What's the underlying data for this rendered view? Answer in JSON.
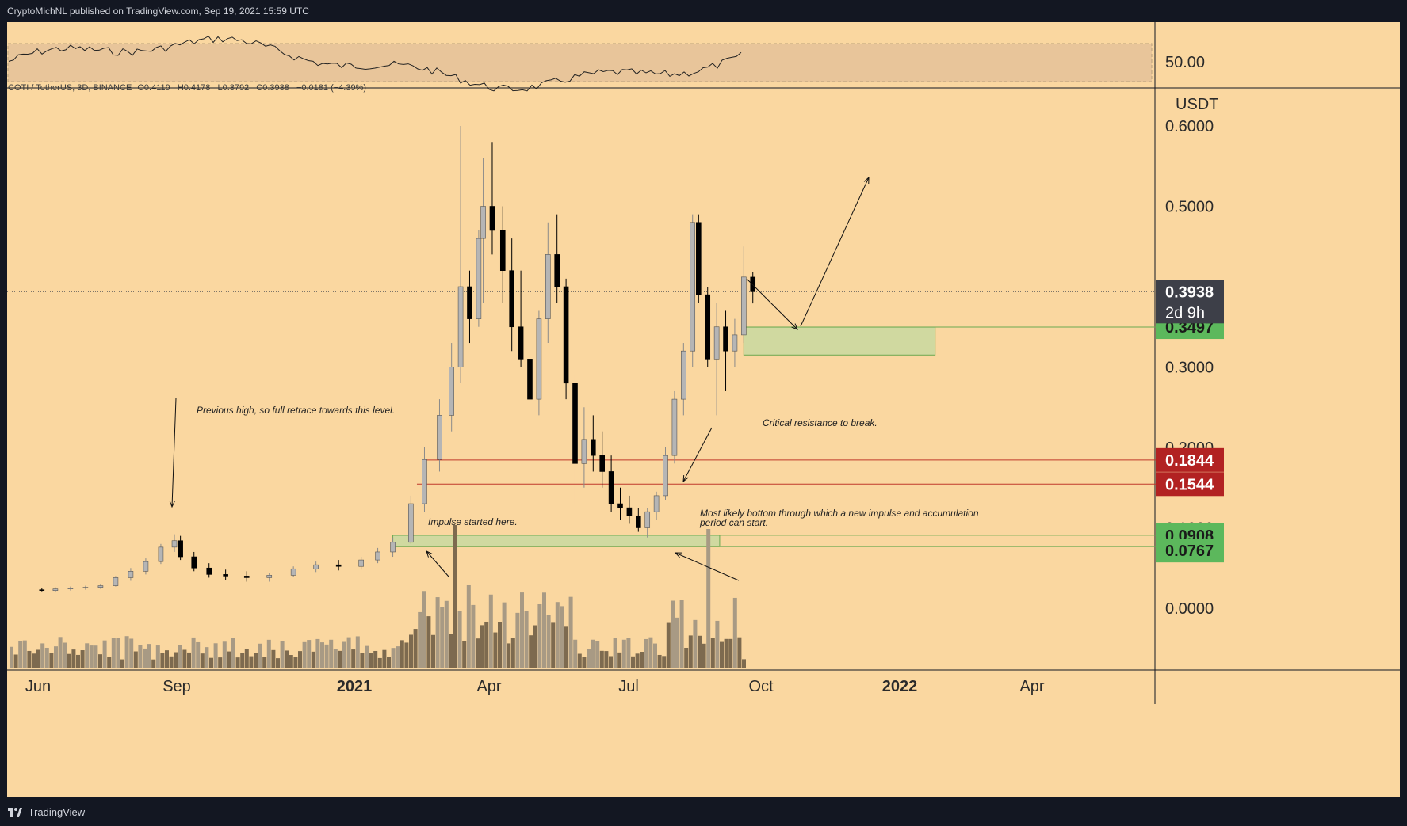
{
  "header": {
    "published_by": "CryptoMichNL published on TradingView.com, Sep 19, 2021 15:59 UTC"
  },
  "footer": {
    "brand": "TradingView"
  },
  "symbol": {
    "pair": "COTI / TetherUS, 3D, BINANCE",
    "open": "O0.4119",
    "high": "H0.4178",
    "low": "L0.3792",
    "close": "C0.3938",
    "change": "−0.0181 (−4.39%)"
  },
  "price_axis": {
    "currency": "USDT",
    "ticks": [
      "0.6000",
      "0.5000",
      "0.3000",
      "0.2000",
      "0.1000",
      "0.0000"
    ],
    "current_price": "0.3938",
    "countdown": "2d 9h"
  },
  "price_labels": [
    {
      "value": "0.3497",
      "color": "#5cb85c"
    },
    {
      "value": "0.1844",
      "color": "#b22222"
    },
    {
      "value": "0.1544",
      "color": "#b22222"
    },
    {
      "value": "0.0908",
      "color": "#5cb85c"
    },
    {
      "value": "0.0767",
      "color": "#5cb85c"
    }
  ],
  "time_axis": [
    "Jun",
    "Sep",
    "2021",
    "Apr",
    "Jul",
    "Oct",
    "2022",
    "Apr"
  ],
  "rsi": {
    "level_label": "50.00"
  },
  "annotations": [
    "Previous high, so full retrace towards this level.",
    "Impulse started here.",
    "Critical resistance to break.",
    "Most likely bottom through which a new impulse and accumulation",
    "period can start."
  ],
  "colors": {
    "background": "#fad7a0",
    "bull": "#a8a8a8",
    "bear": "#000000",
    "zone_green": "#c8d9a0",
    "resistance_red": "#b22222",
    "frame": "#131722"
  },
  "chart_data": {
    "type": "candlestick",
    "title": "COTI / TetherUS, 3D, BINANCE",
    "y_unit": "USDT",
    "ylim": [
      -0.05,
      0.6
    ],
    "x_range": [
      "2020-05-20",
      "2022-06-01"
    ],
    "grid": false,
    "ohlc": [
      [
        "2020-06-01",
        0.023,
        0.025,
        0.021,
        0.022
      ],
      [
        "2020-06-10",
        0.022,
        0.026,
        0.02,
        0.024
      ],
      [
        "2020-06-20",
        0.024,
        0.027,
        0.022,
        0.025
      ],
      [
        "2020-06-30",
        0.025,
        0.028,
        0.023,
        0.026
      ],
      [
        "2020-07-10",
        0.026,
        0.03,
        0.024,
        0.028
      ],
      [
        "2020-07-20",
        0.028,
        0.04,
        0.027,
        0.038
      ],
      [
        "2020-07-30",
        0.038,
        0.05,
        0.034,
        0.046
      ],
      [
        "2020-08-09",
        0.046,
        0.062,
        0.042,
        0.058
      ],
      [
        "2020-08-19",
        0.058,
        0.08,
        0.055,
        0.076
      ],
      [
        "2020-08-28",
        0.076,
        0.092,
        0.07,
        0.084
      ],
      [
        "2020-09-01",
        0.084,
        0.09,
        0.06,
        0.064
      ],
      [
        "2020-09-10",
        0.064,
        0.07,
        0.046,
        0.05
      ],
      [
        "2020-09-20",
        0.05,
        0.056,
        0.038,
        0.042
      ],
      [
        "2020-10-01",
        0.042,
        0.048,
        0.035,
        0.04
      ],
      [
        "2020-10-15",
        0.04,
        0.046,
        0.033,
        0.038
      ],
      [
        "2020-10-30",
        0.038,
        0.044,
        0.033,
        0.041
      ],
      [
        "2020-11-15",
        0.041,
        0.052,
        0.039,
        0.049
      ],
      [
        "2020-11-30",
        0.049,
        0.058,
        0.045,
        0.054
      ],
      [
        "2020-12-15",
        0.054,
        0.06,
        0.047,
        0.052
      ],
      [
        "2020-12-30",
        0.052,
        0.064,
        0.048,
        0.06
      ],
      [
        "2021-01-10",
        0.06,
        0.075,
        0.056,
        0.07
      ],
      [
        "2021-01-20",
        0.07,
        0.088,
        0.064,
        0.082
      ],
      [
        "2021-02-01",
        0.082,
        0.14,
        0.08,
        0.13
      ],
      [
        "2021-02-10",
        0.13,
        0.2,
        0.12,
        0.185
      ],
      [
        "2021-02-20",
        0.185,
        0.26,
        0.17,
        0.24
      ],
      [
        "2021-02-28",
        0.24,
        0.33,
        0.22,
        0.3
      ],
      [
        "2021-03-06",
        0.3,
        0.6,
        0.28,
        0.4
      ],
      [
        "2021-03-12",
        0.4,
        0.42,
        0.33,
        0.36
      ],
      [
        "2021-03-18",
        0.36,
        0.47,
        0.35,
        0.46
      ],
      [
        "2021-03-21",
        0.46,
        0.56,
        0.38,
        0.5
      ],
      [
        "2021-03-27",
        0.5,
        0.58,
        0.44,
        0.47
      ],
      [
        "2021-04-03",
        0.47,
        0.5,
        0.38,
        0.42
      ],
      [
        "2021-04-09",
        0.42,
        0.46,
        0.32,
        0.35
      ],
      [
        "2021-04-15",
        0.35,
        0.42,
        0.3,
        0.31
      ],
      [
        "2021-04-21",
        0.31,
        0.34,
        0.23,
        0.26
      ],
      [
        "2021-04-27",
        0.26,
        0.37,
        0.24,
        0.36
      ],
      [
        "2021-05-03",
        0.36,
        0.48,
        0.33,
        0.44
      ],
      [
        "2021-05-09",
        0.44,
        0.49,
        0.38,
        0.4
      ],
      [
        "2021-05-15",
        0.4,
        0.41,
        0.26,
        0.28
      ],
      [
        "2021-05-21",
        0.28,
        0.29,
        0.13,
        0.18
      ],
      [
        "2021-05-27",
        0.18,
        0.25,
        0.15,
        0.21
      ],
      [
        "2021-06-02",
        0.21,
        0.24,
        0.17,
        0.19
      ],
      [
        "2021-06-08",
        0.19,
        0.22,
        0.15,
        0.17
      ],
      [
        "2021-06-14",
        0.17,
        0.19,
        0.12,
        0.13
      ],
      [
        "2021-06-20",
        0.13,
        0.15,
        0.11,
        0.125
      ],
      [
        "2021-06-26",
        0.125,
        0.14,
        0.105,
        0.115
      ],
      [
        "2021-07-02",
        0.115,
        0.125,
        0.095,
        0.1
      ],
      [
        "2021-07-08",
        0.1,
        0.125,
        0.088,
        0.12
      ],
      [
        "2021-07-14",
        0.12,
        0.145,
        0.11,
        0.14
      ],
      [
        "2021-07-20",
        0.14,
        0.2,
        0.135,
        0.19
      ],
      [
        "2021-07-26",
        0.19,
        0.27,
        0.18,
        0.26
      ],
      [
        "2021-08-01",
        0.26,
        0.33,
        0.24,
        0.32
      ],
      [
        "2021-08-07",
        0.32,
        0.49,
        0.3,
        0.48
      ],
      [
        "2021-08-11",
        0.48,
        0.49,
        0.38,
        0.39
      ],
      [
        "2021-08-17",
        0.39,
        0.4,
        0.3,
        0.31
      ],
      [
        "2021-08-23",
        0.31,
        0.38,
        0.24,
        0.35
      ],
      [
        "2021-08-29",
        0.35,
        0.37,
        0.27,
        0.32
      ],
      [
        "2021-09-04",
        0.32,
        0.36,
        0.3,
        0.34
      ],
      [
        "2021-09-10",
        0.34,
        0.45,
        0.33,
        0.412
      ],
      [
        "2021-09-16",
        0.4119,
        0.4178,
        0.3792,
        0.3938
      ]
    ],
    "key_levels": [
      0.3497,
      0.1844,
      0.1544,
      0.0908,
      0.0767
    ],
    "zones": [
      {
        "from": "2021-09-10",
        "to": "2022-01-15",
        "low": 0.315,
        "high": 0.3497
      },
      {
        "from": "2021-01-20",
        "to": "2021-08-25",
        "low": 0.0767,
        "high": 0.0908
      }
    ]
  }
}
